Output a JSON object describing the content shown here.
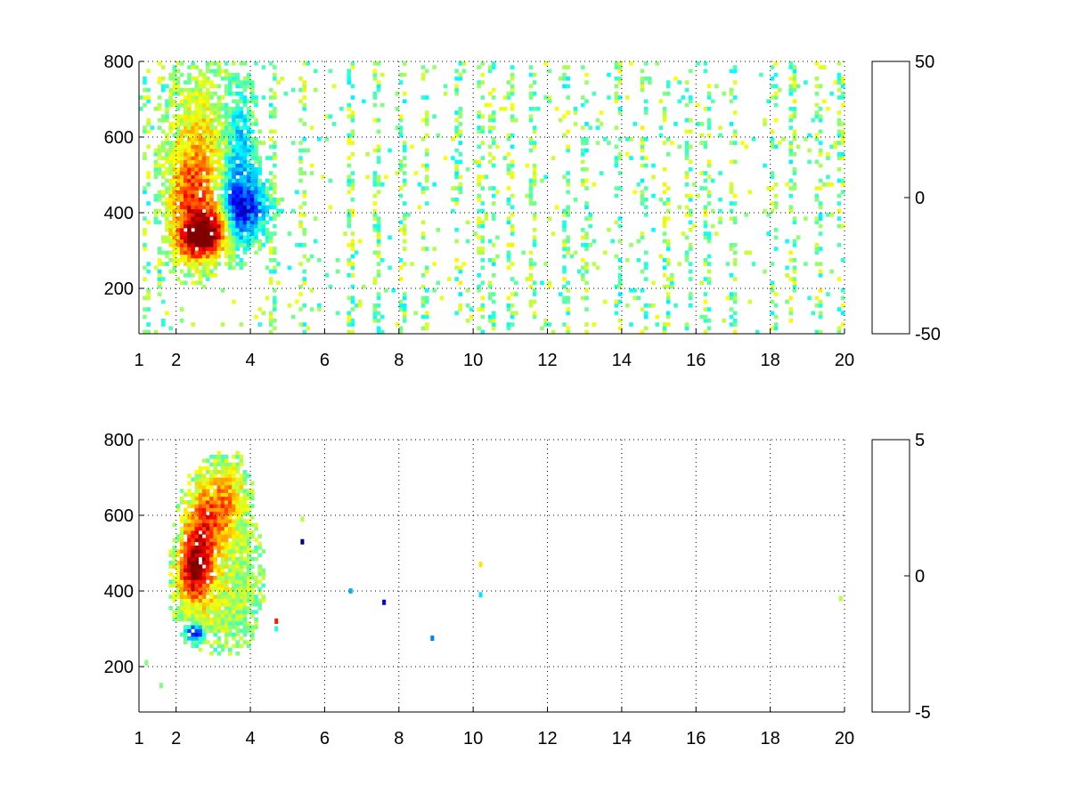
{
  "chart_data": [
    {
      "type": "heatmap",
      "title": "",
      "xlabel": "",
      "ylabel": "",
      "xlim": [
        1,
        20
      ],
      "ylim": [
        80,
        800
      ],
      "x_ticks": [
        1,
        2,
        4,
        6,
        8,
        10,
        12,
        14,
        16,
        18,
        20
      ],
      "y_ticks": [
        200,
        400,
        600,
        800
      ],
      "grid": true,
      "colormap": "jet",
      "colorbar": {
        "min": -50,
        "max": 50,
        "ticks": [
          50,
          0,
          -50
        ],
        "placement": "right"
      },
      "features": [
        {
          "x": 2.6,
          "y": 330,
          "value": 38,
          "sx": 0.35,
          "sy": 35
        },
        {
          "x": 2.4,
          "y": 420,
          "value": 26,
          "sx": 0.4,
          "sy": 90
        },
        {
          "x": 2.6,
          "y": 560,
          "value": 14,
          "sx": 0.5,
          "sy": 130
        },
        {
          "x": 3.1,
          "y": 360,
          "value": 30,
          "sx": 0.35,
          "sy": 40
        },
        {
          "x": 3.6,
          "y": 400,
          "value": -28,
          "sx": 0.3,
          "sy": 60
        },
        {
          "x": 3.7,
          "y": 560,
          "value": -18,
          "sx": 0.25,
          "sy": 110
        },
        {
          "x": 4.1,
          "y": 420,
          "value": -20,
          "sx": 0.3,
          "sy": 50
        }
      ],
      "noise_columns_x": [
        1.2,
        1.6,
        4.6,
        5.4,
        6.7,
        7.4,
        8.1,
        8.7,
        9.6,
        10.2,
        10.5,
        11.0,
        11.6,
        12.5,
        13.0,
        13.9,
        14.6,
        15.2,
        15.8,
        16.3,
        17.0,
        18.1,
        18.6,
        19.3,
        19.9
      ]
    },
    {
      "type": "heatmap",
      "title": "",
      "xlabel": "",
      "ylabel": "",
      "xlim": [
        1,
        20
      ],
      "ylim": [
        80,
        800
      ],
      "x_ticks": [
        1,
        2,
        4,
        6,
        8,
        10,
        12,
        14,
        16,
        18,
        20
      ],
      "y_ticks": [
        200,
        400,
        600,
        800
      ],
      "grid": true,
      "colormap": "jet",
      "colorbar": {
        "min": -5,
        "max": 5,
        "ticks": [
          5,
          0,
          -5
        ],
        "placement": "right"
      },
      "features": [
        {
          "x": 2.5,
          "y": 460,
          "value": 4.5,
          "sx": 0.3,
          "sy": 60
        },
        {
          "x": 2.8,
          "y": 580,
          "value": 3.0,
          "sx": 0.35,
          "sy": 70
        },
        {
          "x": 3.0,
          "y": 380,
          "value": 0.6,
          "sx": 0.5,
          "sy": 60
        },
        {
          "x": 3.5,
          "y": 440,
          "value": 0.3,
          "sx": 0.4,
          "sy": 90
        },
        {
          "x": 2.5,
          "y": 290,
          "value": -4.5,
          "sx": 0.15,
          "sy": 15
        },
        {
          "x": 3.4,
          "y": 640,
          "value": 2.0,
          "sx": 0.3,
          "sy": 60
        }
      ],
      "isolated_points": [
        {
          "x": 5.4,
          "y": 530,
          "value": -5
        },
        {
          "x": 5.4,
          "y": 590,
          "value": 0.5
        },
        {
          "x": 6.7,
          "y": 400,
          "value": -2
        },
        {
          "x": 7.6,
          "y": 370,
          "value": -4
        },
        {
          "x": 8.9,
          "y": 275,
          "value": -2.5
        },
        {
          "x": 10.2,
          "y": 390,
          "value": -1.5
        },
        {
          "x": 10.2,
          "y": 470,
          "value": 1.5
        },
        {
          "x": 4.7,
          "y": 320,
          "value": 3.5
        },
        {
          "x": 4.7,
          "y": 300,
          "value": -1
        },
        {
          "x": 1.6,
          "y": 150,
          "value": 0
        },
        {
          "x": 1.2,
          "y": 210,
          "value": 0
        },
        {
          "x": 19.9,
          "y": 380,
          "value": 0.5
        }
      ]
    }
  ]
}
